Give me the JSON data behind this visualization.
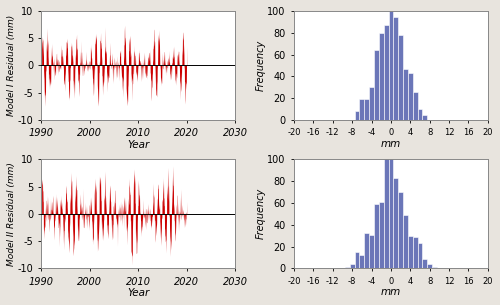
{
  "time_start": 1990,
  "time_end": 2030,
  "ylim_ts": [
    -10,
    10
  ],
  "yticks_ts": [
    -10,
    -5,
    0,
    5,
    10
  ],
  "xticks_ts": [
    1990,
    2000,
    2010,
    2020,
    2030
  ],
  "xlabel_ts": "Year",
  "ylabel_model1": "Model I Residual (mm)",
  "ylabel_model2": "Model II Residual (mm)",
  "hist_xlim": [
    -20,
    20
  ],
  "hist_xticks": [
    -20,
    -16,
    -12,
    -8,
    -4,
    0,
    4,
    8,
    12,
    16,
    20
  ],
  "hist_ylim": [
    0,
    100
  ],
  "hist_yticks": [
    0,
    20,
    40,
    60,
    80,
    100
  ],
  "xlabel_hist": "mm",
  "ylabel_hist": "Frequency",
  "bar_color": "#6b76b8",
  "line_color": "#cc0000",
  "hline_color": "#000000",
  "bg_color": "#ffffff",
  "fig_bg_color": "#e8e4de",
  "n_years": 30,
  "n_per_year": 24,
  "seed1": 7,
  "seed2": 13
}
